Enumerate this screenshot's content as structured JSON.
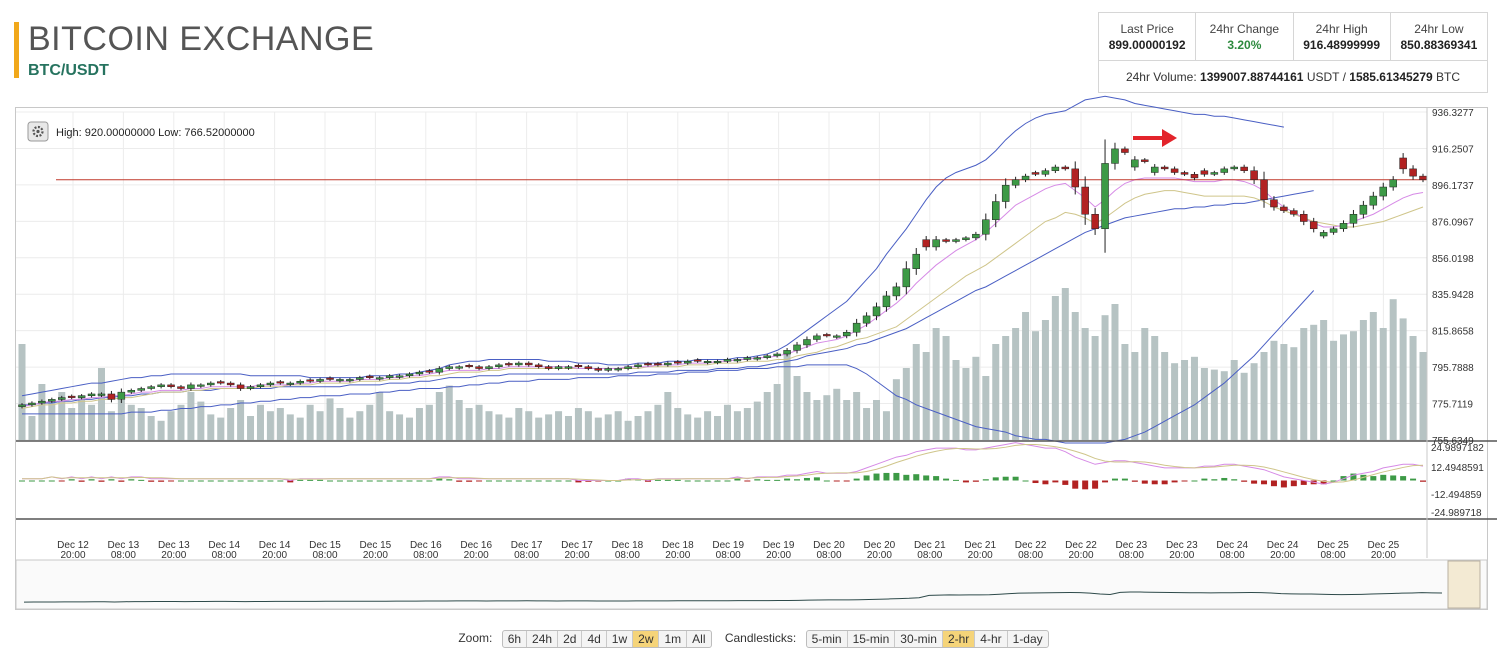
{
  "header": {
    "title": "BITCOIN EXCHANGE",
    "pair": "BTC/USDT"
  },
  "stats": {
    "last_price_label": "Last Price",
    "last_price": "899.00000192",
    "change_label": "24hr Change",
    "change": "3.20%",
    "high_label": "24hr High",
    "high": "916.48999999",
    "low_label": "24hr Low",
    "low": "850.88369341",
    "volume_label": "24hr Volume:",
    "volume_usdt": "1399007.88744161",
    "volume_usdt_unit": "USDT /",
    "volume_btc": "1585.61345279",
    "volume_btc_unit": "BTC"
  },
  "chart_info": {
    "high_low_text": "High: 920.00000000  Low: 766.52000000",
    "settings_icon": "gear-icon"
  },
  "controls": {
    "zoom_label": "Zoom:",
    "zoom_options": [
      "6h",
      "24h",
      "2d",
      "4d",
      "1w",
      "2w",
      "1m",
      "All"
    ],
    "zoom_active": "2w",
    "candle_label": "Candlesticks:",
    "candle_options": [
      "5-min",
      "15-min",
      "30-min",
      "2-hr",
      "4-hr",
      "1-day"
    ],
    "candle_active": "2-hr"
  },
  "colors": {
    "up": "#3d9a46",
    "down": "#b22222",
    "volume": "#b6c3c3",
    "ma_pink": "#d68ae6",
    "ma_tan": "#cfc58a",
    "band_blue": "#4a5fc4",
    "ref_line": "#c0392b",
    "arrow": "#e3242b"
  },
  "chart_data": {
    "type": "candlestick",
    "price_axis_ticks": [
      "936.3277",
      "916.2507",
      "896.1737",
      "876.0967",
      "856.0198",
      "835.9428",
      "815.8658",
      "795.7888",
      "775.7119",
      "755.6349"
    ],
    "price_range": [
      755.6349,
      936.3277
    ],
    "macd_axis_ticks": [
      "24.9897182",
      "12.4948591",
      "-12.494859",
      "-24.989718"
    ],
    "macd_range": [
      -24.9897182,
      24.9897182
    ],
    "time_axis_labels": [
      [
        "Dec 12",
        "20:00"
      ],
      [
        "Dec 13",
        "08:00"
      ],
      [
        "Dec 13",
        "20:00"
      ],
      [
        "Dec 14",
        "08:00"
      ],
      [
        "Dec 14",
        "20:00"
      ],
      [
        "Dec 15",
        "08:00"
      ],
      [
        "Dec 15",
        "20:00"
      ],
      [
        "Dec 16",
        "08:00"
      ],
      [
        "Dec 16",
        "20:00"
      ],
      [
        "Dec 17",
        "08:00"
      ],
      [
        "Dec 17",
        "20:00"
      ],
      [
        "Dec 18",
        "08:00"
      ],
      [
        "Dec 18",
        "20:00"
      ],
      [
        "Dec 19",
        "08:00"
      ],
      [
        "Dec 19",
        "20:00"
      ],
      [
        "Dec 20",
        "08:00"
      ],
      [
        "Dec 20",
        "20:00"
      ],
      [
        "Dec 21",
        "08:00"
      ],
      [
        "Dec 21",
        "20:00"
      ],
      [
        "Dec 22",
        "08:00"
      ],
      [
        "Dec 22",
        "20:00"
      ],
      [
        "Dec 23",
        "08:00"
      ],
      [
        "Dec 23",
        "20:00"
      ],
      [
        "Dec 24",
        "08:00"
      ],
      [
        "Dec 24",
        "20:00"
      ],
      [
        "Dec 25",
        "08:00"
      ],
      [
        "Dec 25",
        "20:00"
      ]
    ],
    "reference_price": 899.0,
    "close": [
      775,
      776,
      777,
      778,
      779,
      779,
      780,
      781,
      781,
      778,
      782,
      783,
      784,
      785,
      786,
      785,
      784,
      786,
      786,
      787,
      787,
      786,
      784,
      785,
      786,
      787,
      787,
      787,
      788,
      788,
      789,
      789,
      789,
      789,
      790,
      790,
      790,
      791,
      791,
      792,
      793,
      793,
      795,
      796,
      796,
      796,
      795,
      796,
      797,
      797,
      798,
      797,
      796,
      795,
      796,
      796,
      796,
      795,
      794,
      795,
      795,
      796,
      797,
      797,
      797,
      798,
      798,
      799,
      799,
      799,
      799,
      800,
      800,
      801,
      801,
      802,
      803,
      805,
      808,
      811,
      813,
      813,
      813,
      815,
      820,
      824,
      829,
      835,
      840,
      850,
      858,
      862,
      866,
      865,
      866,
      867,
      869,
      877,
      887,
      896,
      899,
      901,
      902,
      904,
      906,
      905,
      895,
      880,
      872,
      908,
      916,
      914,
      910,
      909,
      906,
      905,
      903,
      902,
      900,
      902,
      903,
      905,
      906,
      904,
      899,
      888,
      884,
      882,
      880,
      876,
      872,
      870,
      872,
      875,
      880,
      885,
      890,
      895,
      899,
      905,
      901,
      899
    ],
    "candle_dir": [
      1,
      1,
      1,
      1,
      1,
      -1,
      1,
      1,
      1,
      -1,
      1,
      1,
      1,
      1,
      1,
      -1,
      -1,
      1,
      1,
      1,
      -1,
      -1,
      -1,
      1,
      1,
      1,
      -1,
      1,
      1,
      -1,
      1,
      -1,
      1,
      1,
      1,
      -1,
      1,
      1,
      1,
      1,
      1,
      -1,
      1,
      1,
      1,
      -1,
      -1,
      1,
      1,
      -1,
      1,
      -1,
      -1,
      -1,
      1,
      1,
      -1,
      -1,
      -1,
      1,
      1,
      1,
      1,
      -1,
      -1,
      1,
      -1,
      1,
      -1,
      1,
      1,
      1,
      1,
      1,
      1,
      1,
      1,
      1,
      1,
      1,
      1,
      -1,
      1,
      1,
      1,
      1,
      1,
      1,
      1,
      1,
      1,
      -1,
      1,
      -1,
      1,
      1,
      1,
      1,
      1,
      1,
      1,
      1,
      -1,
      1,
      1,
      -1,
      -1,
      -1,
      -1,
      1,
      1,
      -1,
      1,
      -1,
      1,
      -1,
      -1,
      -1,
      -1,
      -1,
      1,
      1,
      1,
      -1,
      -1,
      -1,
      -1,
      -1,
      -1,
      -1,
      -1,
      1,
      1,
      1,
      1,
      1,
      1,
      1,
      1,
      -1,
      -1,
      -1
    ],
    "volume": [
      60,
      15,
      35,
      25,
      30,
      20,
      28,
      22,
      45,
      18,
      25,
      22,
      20,
      15,
      12,
      18,
      22,
      30,
      24,
      16,
      14,
      20,
      25,
      15,
      22,
      18,
      20,
      16,
      14,
      22,
      18,
      26,
      20,
      14,
      18,
      22,
      30,
      18,
      16,
      14,
      20,
      22,
      30,
      34,
      25,
      20,
      22,
      18,
      16,
      14,
      20,
      18,
      14,
      16,
      18,
      15,
      20,
      18,
      14,
      16,
      18,
      12,
      15,
      18,
      22,
      30,
      20,
      16,
      14,
      18,
      15,
      22,
      18,
      20,
      24,
      30,
      35,
      55,
      40,
      30,
      25,
      28,
      32,
      25,
      30,
      20,
      25,
      18,
      38,
      45,
      60,
      55,
      70,
      65,
      50,
      45,
      52,
      40,
      60,
      65,
      70,
      80,
      68,
      75,
      90,
      95,
      80,
      70,
      65,
      78,
      85,
      60,
      55,
      70,
      65,
      55,
      48,
      50,
      52,
      45,
      44,
      43,
      50,
      42,
      48,
      55,
      62,
      60,
      58,
      70,
      72,
      75,
      62,
      66,
      68,
      75,
      80,
      70,
      88,
      76,
      65,
      55
    ],
    "ma_tan": [
      773,
      774,
      775,
      775,
      776,
      776,
      777,
      777,
      778,
      778,
      779,
      779,
      780,
      781,
      782,
      782,
      782,
      783,
      783,
      784,
      784,
      784,
      784,
      784,
      785,
      785,
      785,
      786,
      786,
      786,
      787,
      787,
      787,
      787,
      788,
      788,
      788,
      789,
      789,
      790,
      790,
      791,
      791,
      792,
      793,
      793,
      793,
      794,
      794,
      795,
      795,
      795,
      795,
      795,
      795,
      795,
      795,
      795,
      795,
      795,
      795,
      795,
      795,
      796,
      796,
      796,
      796,
      797,
      797,
      797,
      798,
      798,
      798,
      799,
      799,
      799,
      800,
      800,
      802,
      803,
      804,
      806,
      807,
      809,
      811,
      812,
      814,
      816,
      818,
      822,
      826,
      830,
      834,
      838,
      842,
      846,
      849,
      852,
      856,
      860,
      864,
      868,
      872,
      876,
      878,
      881,
      880,
      878,
      875,
      878,
      882,
      886,
      889,
      891,
      892,
      893,
      893,
      892,
      891,
      890,
      890,
      890,
      890,
      890,
      889,
      887,
      884,
      882,
      880,
      878,
      876,
      875,
      874,
      873,
      873,
      874,
      875,
      876,
      878,
      880,
      882,
      884
    ],
    "ma_pink": [
      774,
      775,
      776,
      777,
      777,
      778,
      778,
      779,
      779,
      780,
      780,
      781,
      782,
      782,
      783,
      783,
      783,
      784,
      784,
      785,
      785,
      785,
      785,
      785,
      786,
      786,
      786,
      786,
      787,
      787,
      788,
      788,
      788,
      788,
      789,
      789,
      789,
      790,
      790,
      791,
      791,
      792,
      793,
      794,
      794,
      794,
      794,
      795,
      795,
      796,
      796,
      796,
      796,
      796,
      796,
      796,
      795,
      795,
      795,
      795,
      795,
      796,
      796,
      796,
      797,
      797,
      797,
      798,
      798,
      798,
      799,
      799,
      800,
      800,
      801,
      801,
      802,
      803,
      805,
      807,
      809,
      810,
      811,
      813,
      816,
      819,
      823,
      827,
      831,
      836,
      842,
      847,
      852,
      856,
      860,
      863,
      866,
      870,
      875,
      880,
      885,
      888,
      891,
      894,
      896,
      897,
      893,
      889,
      884,
      888,
      893,
      897,
      899,
      900,
      900,
      900,
      900,
      899,
      898,
      898,
      898,
      899,
      899,
      898,
      896,
      893,
      888,
      884,
      881,
      878,
      875,
      873,
      873,
      874,
      876,
      878,
      880,
      883,
      886,
      889,
      891,
      892
    ],
    "bb_upper": [
      780,
      781,
      782,
      783,
      784,
      785,
      786,
      787,
      787,
      788,
      789,
      790,
      790,
      791,
      791,
      792,
      792,
      792,
      792,
      792,
      792,
      792,
      792,
      791,
      791,
      791,
      791,
      791,
      791,
      790,
      790,
      790,
      790,
      790,
      790,
      791,
      791,
      791,
      792,
      792,
      793,
      794,
      795,
      797,
      798,
      799,
      799,
      800,
      800,
      800,
      800,
      800,
      800,
      799,
      799,
      799,
      798,
      798,
      798,
      797,
      797,
      797,
      798,
      798,
      798,
      799,
      799,
      799,
      800,
      800,
      800,
      800,
      801,
      801,
      802,
      803,
      805,
      808,
      812,
      816,
      820,
      824,
      828,
      832,
      838,
      844,
      850,
      858,
      865,
      872,
      880,
      888,
      895,
      900,
      903,
      905,
      907,
      910,
      915,
      921,
      926,
      930,
      933,
      935,
      936,
      937,
      940,
      943,
      944,
      945,
      944,
      943,
      941,
      940,
      939,
      938,
      937,
      936,
      935,
      935,
      934,
      934,
      933,
      932,
      931,
      930,
      929,
      928
    ],
    "bb_lower": [
      770,
      770,
      770,
      770,
      770,
      770,
      770,
      770,
      770,
      770,
      770,
      771,
      771,
      771,
      772,
      772,
      773,
      773,
      774,
      774,
      775,
      775,
      776,
      776,
      777,
      777,
      778,
      778,
      779,
      779,
      780,
      780,
      780,
      781,
      781,
      781,
      782,
      782,
      783,
      783,
      784,
      784,
      784,
      785,
      785,
      786,
      786,
      787,
      787,
      788,
      788,
      788,
      789,
      789,
      789,
      789,
      790,
      790,
      790,
      790,
      791,
      791,
      791,
      791,
      792,
      792,
      792,
      793,
      793,
      793,
      794,
      794,
      794,
      795,
      795,
      795,
      796,
      796,
      796,
      797,
      797,
      797,
      797,
      797,
      795,
      792,
      788,
      784,
      780,
      778,
      775,
      773,
      771,
      769,
      767,
      765,
      763,
      762,
      761,
      760,
      758,
      757,
      756,
      756,
      755,
      754,
      754,
      754,
      754,
      754,
      755,
      756,
      758,
      760,
      763,
      766,
      769,
      772,
      775,
      779,
      783,
      787,
      792,
      797,
      802,
      808,
      814,
      820,
      826,
      832,
      838
    ],
    "bb_mid": [
      775,
      775,
      776,
      776,
      777,
      777,
      778,
      778,
      779,
      779,
      780,
      780,
      781,
      781,
      782,
      782,
      782,
      783,
      783,
      783,
      784,
      784,
      784,
      784,
      784,
      784,
      785,
      785,
      785,
      785,
      785,
      785,
      785,
      786,
      786,
      786,
      786,
      787,
      787,
      787,
      788,
      788,
      789,
      790,
      790,
      790,
      791,
      791,
      791,
      792,
      792,
      792,
      792,
      792,
      792,
      792,
      792,
      792,
      792,
      792,
      792,
      792,
      793,
      793,
      793,
      793,
      794,
      794,
      794,
      794,
      795,
      795,
      795,
      796,
      796,
      797,
      798,
      799,
      800,
      802,
      803,
      804,
      805,
      806,
      808,
      809,
      811,
      813,
      815,
      817,
      820,
      823,
      826,
      829,
      832,
      835,
      838,
      840,
      843,
      846,
      849,
      852,
      855,
      858,
      861,
      864,
      867,
      870,
      872,
      874,
      876,
      878,
      879,
      880,
      881,
      882,
      883,
      883,
      884,
      884,
      885,
      885,
      886,
      886,
      887,
      888,
      889,
      890,
      891,
      892,
      893
    ]
  }
}
